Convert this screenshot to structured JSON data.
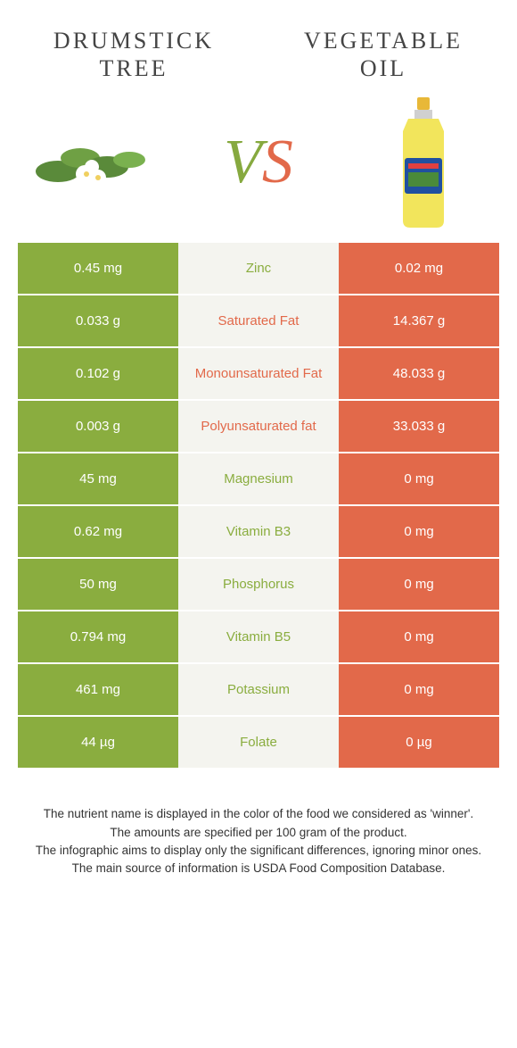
{
  "header": {
    "left": "DRUMSTICK TREE",
    "right": "VEGETABLE OIL"
  },
  "vs": {
    "v": "V",
    "s": "S"
  },
  "colors": {
    "green": "#8aad3f",
    "orange": "#e2694a",
    "mid_bg": "#f4f4ef"
  },
  "rows": [
    {
      "left": "0.45 mg",
      "mid": "Zinc",
      "right": "0.02 mg",
      "winner": "green"
    },
    {
      "left": "0.033 g",
      "mid": "Saturated Fat",
      "right": "14.367 g",
      "winner": "orange"
    },
    {
      "left": "0.102 g",
      "mid": "Monounsaturated Fat",
      "right": "48.033 g",
      "winner": "orange"
    },
    {
      "left": "0.003 g",
      "mid": "Polyunsaturated fat",
      "right": "33.033 g",
      "winner": "orange"
    },
    {
      "left": "45 mg",
      "mid": "Magnesium",
      "right": "0 mg",
      "winner": "green"
    },
    {
      "left": "0.62 mg",
      "mid": "Vitamin B3",
      "right": "0 mg",
      "winner": "green"
    },
    {
      "left": "50 mg",
      "mid": "Phosphorus",
      "right": "0 mg",
      "winner": "green"
    },
    {
      "left": "0.794 mg",
      "mid": "Vitamin B5",
      "right": "0 mg",
      "winner": "green"
    },
    {
      "left": "461 mg",
      "mid": "Potassium",
      "right": "0 mg",
      "winner": "green"
    },
    {
      "left": "44 µg",
      "mid": "Folate",
      "right": "0 µg",
      "winner": "green"
    }
  ],
  "footer": {
    "l1": "The nutrient name is displayed in the color of the food we considered as 'winner'.",
    "l2": "The amounts are specified per 100 gram of the product.",
    "l3": "The infographic aims to display only the significant differences, ignoring minor ones.",
    "l4": "The main source of information is USDA Food Composition Database."
  }
}
